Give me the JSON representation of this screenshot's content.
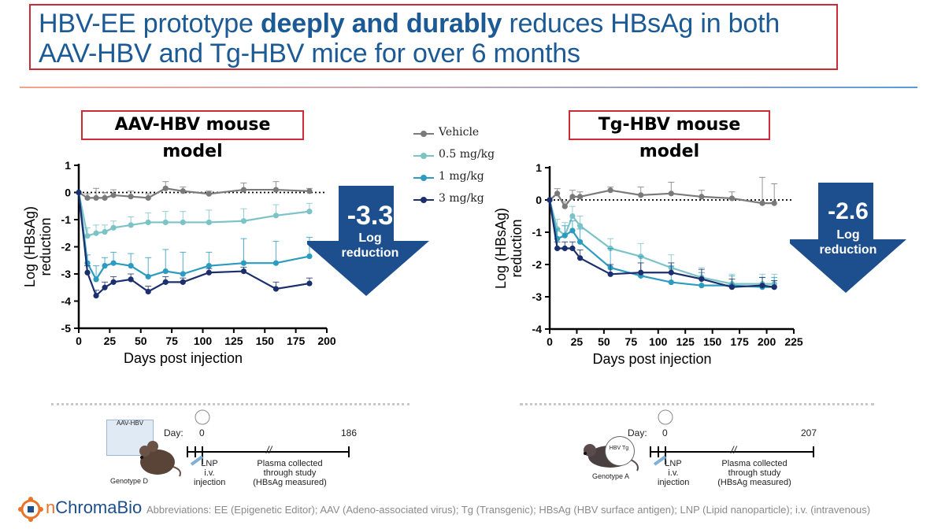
{
  "title": {
    "line1_pre": "HBV-EE prototype ",
    "line1_bold": "deeply and durably",
    "line1_post": " reduces HBsAg in both",
    "line2": "AAV-HBV and Tg-HBV mice for over 6 months"
  },
  "legend": {
    "items": [
      {
        "label": "Vehicle",
        "color": "#7a7a7a"
      },
      {
        "label": "0.5 mg/kg",
        "color": "#7cc3c8"
      },
      {
        "label": "1 mg/kg",
        "color": "#2b9bbf"
      },
      {
        "label": "3 mg/kg",
        "color": "#1b2f6e"
      }
    ]
  },
  "chart_data": [
    {
      "type": "line",
      "title": "AAV-HBV mouse model",
      "xlabel": "Days post injection",
      "ylabel": "Log (HBsAg) reduction",
      "xlim": [
        0,
        200
      ],
      "ylim": [
        -5,
        1
      ],
      "xticks": [
        0,
        25,
        50,
        75,
        100,
        125,
        150,
        175,
        200
      ],
      "yticks": [
        1,
        0,
        -1,
        -2,
        -3,
        -4,
        -5
      ],
      "reference_line": 0,
      "callout": {
        "value": "-3.3",
        "text1": "Log",
        "text2": "reduction"
      },
      "series": [
        {
          "name": "Vehicle",
          "color": "#7a7a7a",
          "x": [
            0,
            7,
            14,
            21,
            28,
            42,
            56,
            70,
            84,
            105,
            133,
            159,
            186
          ],
          "y": [
            0,
            -0.2,
            -0.2,
            -0.2,
            -0.1,
            -0.15,
            -0.2,
            0.15,
            0.05,
            -0.05,
            0.1,
            0.1,
            0.05
          ],
          "err": [
            0,
            0.15,
            0.35,
            0.2,
            0.2,
            0.2,
            0.15,
            0.25,
            0.15,
            0.1,
            0.25,
            0.3,
            0.1
          ]
        },
        {
          "name": "0.5 mg/kg",
          "color": "#7cc3c8",
          "x": [
            0,
            7,
            14,
            21,
            28,
            42,
            56,
            70,
            84,
            105,
            133,
            159,
            186
          ],
          "y": [
            0,
            -1.6,
            -1.5,
            -1.45,
            -1.3,
            -1.2,
            -1.1,
            -1.1,
            -1.1,
            -1.1,
            -1.05,
            -0.85,
            -0.7
          ],
          "err": [
            0,
            0.3,
            0.3,
            0.25,
            0.25,
            0.3,
            0.35,
            0.4,
            0.4,
            0.45,
            0.45,
            0.4,
            0.3
          ]
        },
        {
          "name": "1 mg/kg",
          "color": "#2b9bbf",
          "x": [
            0,
            7,
            14,
            21,
            28,
            42,
            56,
            70,
            84,
            105,
            133,
            159,
            186
          ],
          "y": [
            0,
            -2.6,
            -3.2,
            -2.7,
            -2.6,
            -2.7,
            -3.1,
            -2.9,
            -3.0,
            -2.7,
            -2.6,
            -2.6,
            -2.35
          ],
          "err": [
            0,
            0.3,
            0.5,
            0.3,
            0.4,
            0.45,
            0.7,
            0.8,
            0.8,
            0.5,
            0.9,
            0.8,
            0.7
          ]
        },
        {
          "name": "3 mg/kg",
          "color": "#1b2f6e",
          "x": [
            0,
            7,
            14,
            21,
            28,
            42,
            56,
            70,
            84,
            105,
            133,
            159,
            186
          ],
          "y": [
            0,
            -2.95,
            -3.8,
            -3.5,
            -3.3,
            -3.2,
            -3.65,
            -3.3,
            -3.3,
            -2.95,
            -2.9,
            -3.55,
            -3.35
          ],
          "err": [
            0,
            0.25,
            0.2,
            0.2,
            0.2,
            0.2,
            0.2,
            0.2,
            0.15,
            0.15,
            0.15,
            0.25,
            0.2
          ]
        }
      ]
    },
    {
      "type": "line",
      "title": "Tg-HBV mouse model",
      "xlabel": "Days post injection",
      "ylabel": "Log (HBsAg) reduction",
      "xlim": [
        0,
        225
      ],
      "ylim": [
        -4,
        1
      ],
      "xticks": [
        0,
        25,
        50,
        75,
        100,
        125,
        150,
        175,
        200,
        225
      ],
      "yticks": [
        1,
        0,
        -1,
        -2,
        -3,
        -4
      ],
      "reference_line": 0,
      "callout": {
        "value": "-2.6",
        "text1": "Log",
        "text2": "reduction"
      },
      "series": [
        {
          "name": "Vehicle",
          "color": "#7a7a7a",
          "x": [
            0,
            7,
            14,
            21,
            28,
            56,
            84,
            112,
            140,
            168,
            196,
            207
          ],
          "y": [
            0,
            0.2,
            -0.2,
            0.1,
            0.1,
            0.3,
            0.15,
            0.2,
            0.1,
            0.05,
            -0.1,
            -0.1
          ],
          "err": [
            0,
            0.15,
            0.15,
            0.2,
            0.15,
            0.1,
            0.25,
            0.35,
            0.2,
            0.2,
            0.8,
            0.6
          ]
        },
        {
          "name": "0.5 mg/kg",
          "color": "#7cc3c8",
          "x": [
            0,
            7,
            14,
            21,
            28,
            56,
            84,
            112,
            140,
            168,
            196,
            207
          ],
          "y": [
            0,
            -0.9,
            -1.1,
            -0.5,
            -0.8,
            -1.5,
            -1.75,
            -2.1,
            -2.4,
            -2.6,
            -2.6,
            -2.6
          ],
          "err": [
            0,
            0.3,
            0.4,
            0.3,
            0.3,
            0.3,
            0.4,
            0.4,
            0.3,
            0.3,
            0.3,
            0.3
          ]
        },
        {
          "name": "1 mg/kg",
          "color": "#2b9bbf",
          "x": [
            0,
            7,
            14,
            21,
            28,
            56,
            84,
            112,
            140,
            168,
            196,
            207
          ],
          "y": [
            0,
            -1.2,
            -1.1,
            -0.95,
            -1.3,
            -2.1,
            -2.35,
            -2.55,
            -2.65,
            -2.65,
            -2.7,
            -2.7
          ],
          "err": [
            0,
            0.3,
            0.3,
            0.3,
            0.4,
            0.6,
            0.6,
            0.5,
            0.4,
            0.3,
            0.3,
            0.3
          ]
        },
        {
          "name": "3 mg/kg",
          "color": "#1b2f6e",
          "x": [
            0,
            7,
            14,
            21,
            28,
            56,
            84,
            112,
            140,
            168,
            196,
            207
          ],
          "y": [
            0,
            -1.5,
            -1.5,
            -1.5,
            -1.8,
            -2.3,
            -2.25,
            -2.25,
            -2.45,
            -2.7,
            -2.65,
            -2.7
          ],
          "err": [
            0,
            0.2,
            0.2,
            0.2,
            0.25,
            0.3,
            0.3,
            0.3,
            0.3,
            0.25,
            0.25,
            0.2
          ]
        }
      ]
    }
  ],
  "panels": {
    "left_title": "AAV-HBV mouse model",
    "right_title": "Tg-HBV mouse model"
  },
  "timeline_left": {
    "day_label": "Day:",
    "start": "0",
    "end": "186",
    "construct": "AAV-HBV",
    "genotype": "Genotype D",
    "lnp1": "LNP",
    "lnp2": "i.v.",
    "lnp3": "injection",
    "plasma1": "Plasma collected",
    "plasma2": "through study",
    "plasma3": "(HBsAg measured)",
    "break": "//"
  },
  "timeline_right": {
    "day_label": "Day:",
    "start": "0",
    "end": "207",
    "construct": "HBV Tg",
    "genotype": "Genotype A",
    "lnp1": "LNP",
    "lnp2": "i.v.",
    "lnp3": "injection",
    "plasma1": "Plasma collected",
    "plasma2": "through study",
    "plasma3": "(HBsAg measured)",
    "break": "//"
  },
  "footer": {
    "logo_prefix": "n",
    "logo_name": "ChromaBio",
    "abbreviations": "Abbreviations: EE (Epigenetic Editor); AAV (Adeno-associated virus); Tg (Transgenic); HBsAg (HBV surface antigen); LNP (Lipid nanoparticle); i.v. (intravenous)"
  }
}
